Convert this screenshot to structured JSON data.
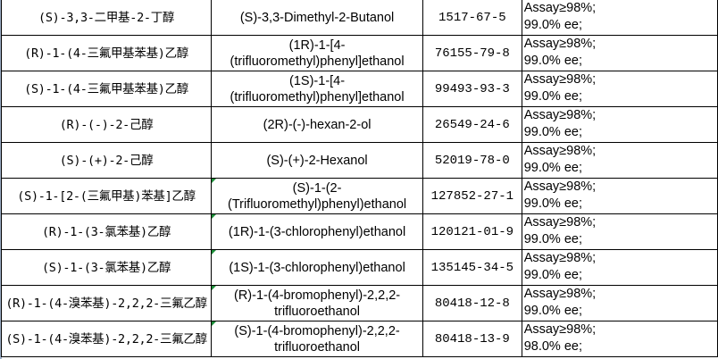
{
  "rows": [
    {
      "cn": "(S)-3,3-二甲基-2-丁醇",
      "en": "(S)-3,3-Dimethyl-2-Butanol",
      "cas": "1517-67-5",
      "assay": "Assay≥98%;",
      "ee": "99.0% ee;",
      "flag": false
    },
    {
      "cn": "(R)-1-(4-三氟甲基苯基)乙醇",
      "en": "(1R)-1-[4-(trifluoromethyl)phenyl]ethanol",
      "cas": "76155-79-8",
      "assay": "Assay≥98%;",
      "ee": "99.0% ee;",
      "flag": false
    },
    {
      "cn": "(S)-1-(4-三氟甲基苯基)乙醇",
      "en": "(1S)-1-[4-(trifluoromethyl)phenyl]ethanol",
      "cas": "99493-93-3",
      "assay": "Assay≥98%;",
      "ee": "99.0% ee;",
      "flag": false
    },
    {
      "cn": "(R)-(-)-2-己醇",
      "en": "(2R)-(-)-hexan-2-ol",
      "cas": "26549-24-6",
      "assay": "Assay≥98%;",
      "ee": "99.0% ee;",
      "flag": false
    },
    {
      "cn": "(S)-(+)-2-己醇",
      "en": "(S)-(+)-2-Hexanol",
      "cas": "52019-78-0",
      "assay": "Assay≥98%;",
      "ee": "99.0% ee;",
      "flag": false
    },
    {
      "cn": "(S)-1-[2-(三氟甲基)苯基]乙醇",
      "en": "(S)-1-(2-(Trifluoromethyl)phenyl)ethanol",
      "cas": "127852-27-1",
      "assay": "Assay≥98%;",
      "ee": "99.0% ee;",
      "flag": true
    },
    {
      "cn": "(R)-1-(3-氯苯基)乙醇",
      "en": "(1R)-1-(3-chlorophenyl)ethanol",
      "cas": "120121-01-9",
      "assay": "Assay≥98%;",
      "ee": "99.0% ee;",
      "flag": true
    },
    {
      "cn": "(S)-1-(3-氯苯基)乙醇",
      "en": "(1S)-1-(3-chlorophenyl)ethanol",
      "cas": "135145-34-5",
      "assay": "Assay≥98%;",
      "ee": "99.0% ee;",
      "flag": true
    },
    {
      "cn": "(R)-1-(4-溴苯基)-2,2,2-三氟乙醇",
      "en": "(R)-1-(4-bromophenyl)-2,2,2-trifluoroethanol",
      "cas": "80418-12-8",
      "assay": "Assay≥98%;",
      "ee": "99.0% ee;",
      "flag": true
    },
    {
      "cn": "(S)-1-(4-溴苯基)-2,2,2-三氟乙醇",
      "en": "(S)-1-(4-bromophenyl)-2,2,2-trifluoroethanol",
      "cas": "80418-13-9",
      "assay": "Assay≥98%;",
      "ee": "98.0% ee;",
      "flag": true
    }
  ],
  "colors": {
    "grid": "#000000",
    "flag": "#1d8f3a"
  }
}
